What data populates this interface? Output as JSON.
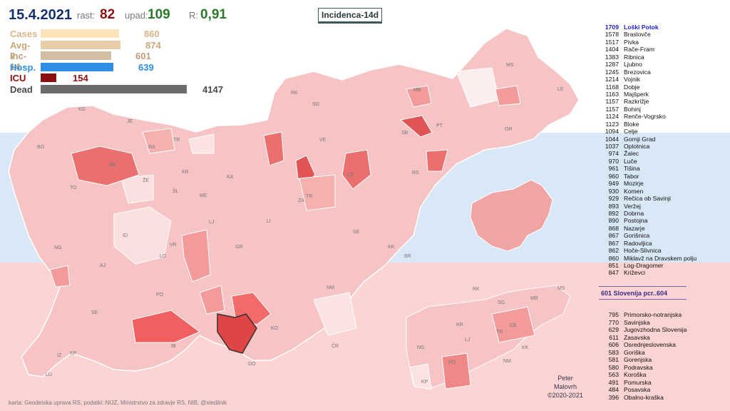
{
  "header": {
    "date": "15.4.2021",
    "rast_label": "rast:",
    "rast_value": "82",
    "upad_label": "upad:",
    "upad_value": "109",
    "r_label": "R:",
    "r_value": "0,91",
    "title": "Incidenca-14d"
  },
  "stats": [
    {
      "label": "Cases",
      "value": "860",
      "num": 860,
      "color": "#ffe3b8",
      "label_color": "#d8b48a",
      "value_color": "#d8b48a"
    },
    {
      "label": "Avg-7",
      "value": "874",
      "num": 874,
      "color": "#e6cda8",
      "label_color": "#c9a67c",
      "value_color": "#c9a67c"
    },
    {
      "label": "Inc-14",
      "value": "601",
      "num": 601,
      "color": "#d2bfa3",
      "label_color": "#c0a07a",
      "value_color": "#c0a07a"
    },
    {
      "label": "Hosp.",
      "value": "639",
      "num": 639,
      "color": "#2e8fe6",
      "label_color": "#2e8fe6",
      "value_color": "#2e8fe6"
    },
    {
      "label": "ICU",
      "value": "154",
      "num": 154,
      "color": "#8b0f0f",
      "label_color": "#8b0f0f",
      "value_color": "#8b0f0f"
    },
    {
      "label": "Dead",
      "value": "4147",
      "num": 4147,
      "color": "#6b6b6b",
      "label_color": "#4a4a4a",
      "value_color": "#4a4a4a"
    }
  ],
  "top_municipalities": [
    {
      "n": "1709",
      "name": "Loški Potok"
    },
    {
      "n": "1578",
      "name": "Braslovče"
    },
    {
      "n": "1517",
      "name": "Pivka"
    },
    {
      "n": "1404",
      "name": "Rače-Fram"
    },
    {
      "n": "1383",
      "name": "Ribnica"
    },
    {
      "n": "1287",
      "name": "Ljubno"
    },
    {
      "n": "1245",
      "name": "Brezovica"
    },
    {
      "n": "1214",
      "name": "Vojnik"
    },
    {
      "n": "1168",
      "name": "Dobje"
    },
    {
      "n": "1163",
      "name": "Majšperk"
    },
    {
      "n": "1157",
      "name": "Razkrižje"
    },
    {
      "n": "1157",
      "name": "Bohinj"
    },
    {
      "n": "1124",
      "name": "Renče-Vogrsko"
    },
    {
      "n": "1123",
      "name": "Bloke"
    },
    {
      "n": "1094",
      "name": "Celje"
    },
    {
      "n": "1044",
      "name": "Gornji Grad"
    },
    {
      "n": "1037",
      "name": "Oplotnica"
    },
    {
      "n": "974",
      "name": "Žalec"
    },
    {
      "n": "970",
      "name": "Luče"
    },
    {
      "n": "961",
      "name": "Tišina"
    },
    {
      "n": "960",
      "name": "Tabor"
    },
    {
      "n": "949",
      "name": "Mozirje"
    },
    {
      "n": "930",
      "name": "Komen"
    },
    {
      "n": "929",
      "name": "Rečica ob Savinji"
    },
    {
      "n": "893",
      "name": "Veržej"
    },
    {
      "n": "892",
      "name": "Dobrna"
    },
    {
      "n": "890",
      "name": "Postojna"
    },
    {
      "n": "868",
      "name": "Nazarje"
    },
    {
      "n": "867",
      "name": "Gorišnica"
    },
    {
      "n": "867",
      "name": "Radovljica"
    },
    {
      "n": "862",
      "name": "Hoče-Slivnica"
    },
    {
      "n": "860",
      "name": "Miklavž na Dravskem polju"
    },
    {
      "n": "851",
      "name": "Log-Dragomer"
    },
    {
      "n": "847",
      "name": "Križevci"
    }
  ],
  "slovenia_row": "601   Slovenija  pcr..604",
  "regions": [
    {
      "n": "795",
      "name": "Primorsko-notranjska"
    },
    {
      "n": "770",
      "name": "Savinjska"
    },
    {
      "n": "629",
      "name": "Jugovzhodna Slovenija"
    },
    {
      "n": "611",
      "name": "Zasavska"
    },
    {
      "n": "606",
      "name": "Osrednjeslovenska"
    },
    {
      "n": "583",
      "name": "Goriška"
    },
    {
      "n": "581",
      "name": "Gorenjska"
    },
    {
      "n": "580",
      "name": "Podravska"
    },
    {
      "n": "563",
      "name": "Koroška"
    },
    {
      "n": "491",
      "name": "Pomurska"
    },
    {
      "n": "484",
      "name": "Posavska"
    },
    {
      "n": "396",
      "name": "Obalno-kraška"
    }
  ],
  "map_labels": [
    "KG",
    "JE",
    "BO",
    "RA",
    "TR",
    "BB",
    "ŽE",
    "KR",
    "KA",
    "TO",
    "ŠL",
    "ME",
    "MB",
    "SG",
    "RK",
    "MS",
    "LE",
    "PT",
    "OR",
    "SB",
    "VE",
    "CE",
    "RS",
    "TR",
    "ZA",
    "LI",
    "LJ",
    "ID",
    "VR",
    "NG",
    "LO",
    "AJ",
    "GR",
    "SE",
    "KK",
    "BR",
    "PO",
    "NM",
    "SE",
    "KO",
    "IB",
    "IZ",
    "KP",
    "LU",
    "ČR",
    "DO"
  ],
  "mini_map_labels": [
    "RK",
    "SG",
    "MB",
    "MS",
    "KR",
    "CE",
    "LJ",
    "TR",
    "NG",
    "KK",
    "NM",
    "PO",
    "KP"
  ],
  "author": {
    "line1": "Peter",
    "line2": "Malovrh",
    "line3": "©2020-2021"
  },
  "credits": "karta: Geodetska uprava RS,  podatki: NIJZ, Ministrstvo za zdravje RS, NIB, @sledilnik",
  "colors": {
    "light": "#f9dcdc",
    "mid": "#f3a8a8",
    "strong": "#ea7272",
    "hot": "#e05454",
    "pale": "#fdeeee",
    "highlight": "#d94b4b"
  }
}
